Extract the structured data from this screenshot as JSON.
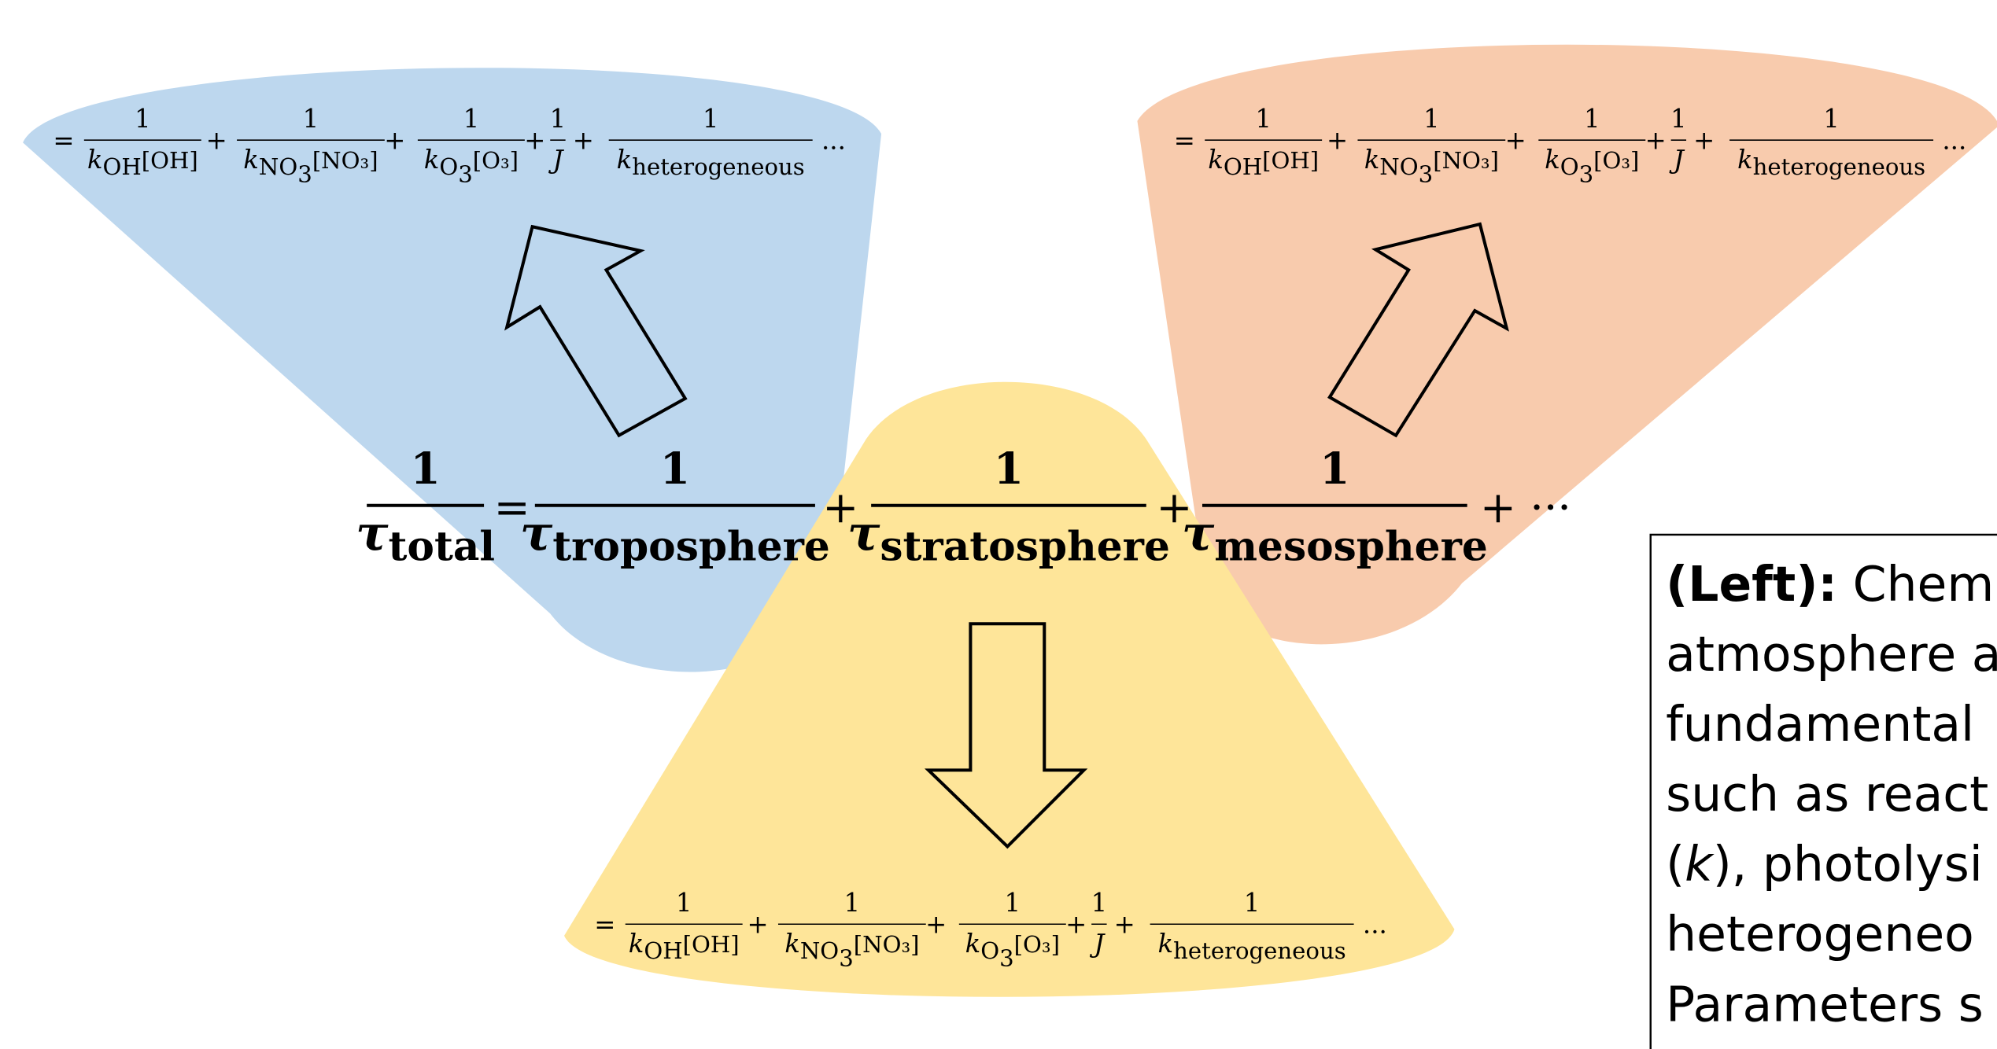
{
  "main_equation": {
    "terms": [
      {
        "numerator": "1",
        "symbol": "τ",
        "subscript": "total"
      },
      {
        "numerator": "1",
        "symbol": "τ",
        "subscript": "troposphere"
      },
      {
        "numerator": "1",
        "symbol": "τ",
        "subscript": "stratosphere"
      },
      {
        "numerator": "1",
        "symbol": "τ",
        "subscript": "mesosphere"
      }
    ],
    "operators": [
      "=",
      "+",
      "+",
      "+ ···"
    ]
  },
  "expansions": [
    {
      "prefix": "=",
      "terms": [
        {
          "numerator": "1",
          "symbol": "k",
          "subscript": "OH",
          "concentration": "[OH]"
        },
        {
          "numerator": "1",
          "symbol": "k",
          "subscript": "NO",
          "subscript_sub": "3",
          "concentration": "[NO₃]"
        },
        {
          "numerator": "1",
          "symbol": "k",
          "subscript": "O",
          "subscript_sub": "3",
          "concentration": "[O₃]"
        },
        {
          "numerator": "1",
          "symbol": "J"
        },
        {
          "numerator": "1",
          "symbol": "k",
          "subscript": "heterogeneous"
        }
      ],
      "operators": [
        "+",
        "+",
        "+",
        "+"
      ],
      "suffix": "..."
    },
    {
      "prefix": "=",
      "terms": [
        {
          "numerator": "1",
          "symbol": "k",
          "subscript": "OH",
          "concentration": "[OH]"
        },
        {
          "numerator": "1",
          "symbol": "k",
          "subscript": "NO",
          "subscript_sub": "3",
          "concentration": "[NO₃]"
        },
        {
          "numerator": "1",
          "symbol": "k",
          "subscript": "O",
          "subscript_sub": "3",
          "concentration": "[O₃]"
        },
        {
          "numerator": "1",
          "symbol": "J"
        },
        {
          "numerator": "1",
          "symbol": "k",
          "subscript": "heterogeneous"
        }
      ],
      "operators": [
        "+",
        "+",
        "+",
        "+"
      ],
      "suffix": "..."
    },
    {
      "prefix": "=",
      "terms": [
        {
          "numerator": "1",
          "symbol": "k",
          "subscript": "OH",
          "concentration": "[OH]"
        },
        {
          "numerator": "1",
          "symbol": "k",
          "subscript": "NO",
          "subscript_sub": "3",
          "concentration": "[NO₃]"
        },
        {
          "numerator": "1",
          "symbol": "k",
          "subscript": "O",
          "subscript_sub": "3",
          "concentration": "[O₃]"
        },
        {
          "numerator": "1",
          "symbol": "J"
        },
        {
          "numerator": "1",
          "symbol": "k",
          "subscript": "heterogeneous"
        }
      ],
      "operators": [
        "+",
        "+",
        "+",
        "+"
      ],
      "suffix": "..."
    }
  ],
  "note": {
    "lines": [
      [
        {
          "text": "(Left):",
          "bold": true
        },
        {
          "text": " Chemi"
        }
      ],
      [
        {
          "text": "atmosphere a"
        }
      ],
      [
        {
          "text": "fundamental"
        }
      ],
      [
        {
          "text": "such as react"
        }
      ],
      [
        {
          "text": "("
        },
        {
          "text": "k",
          "italic": true
        },
        {
          "text": "), photolysi"
        }
      ],
      [
        {
          "text": "heterogeneo"
        }
      ],
      [
        {
          "text": "Parameters s"
        }
      ]
    ]
  }
}
